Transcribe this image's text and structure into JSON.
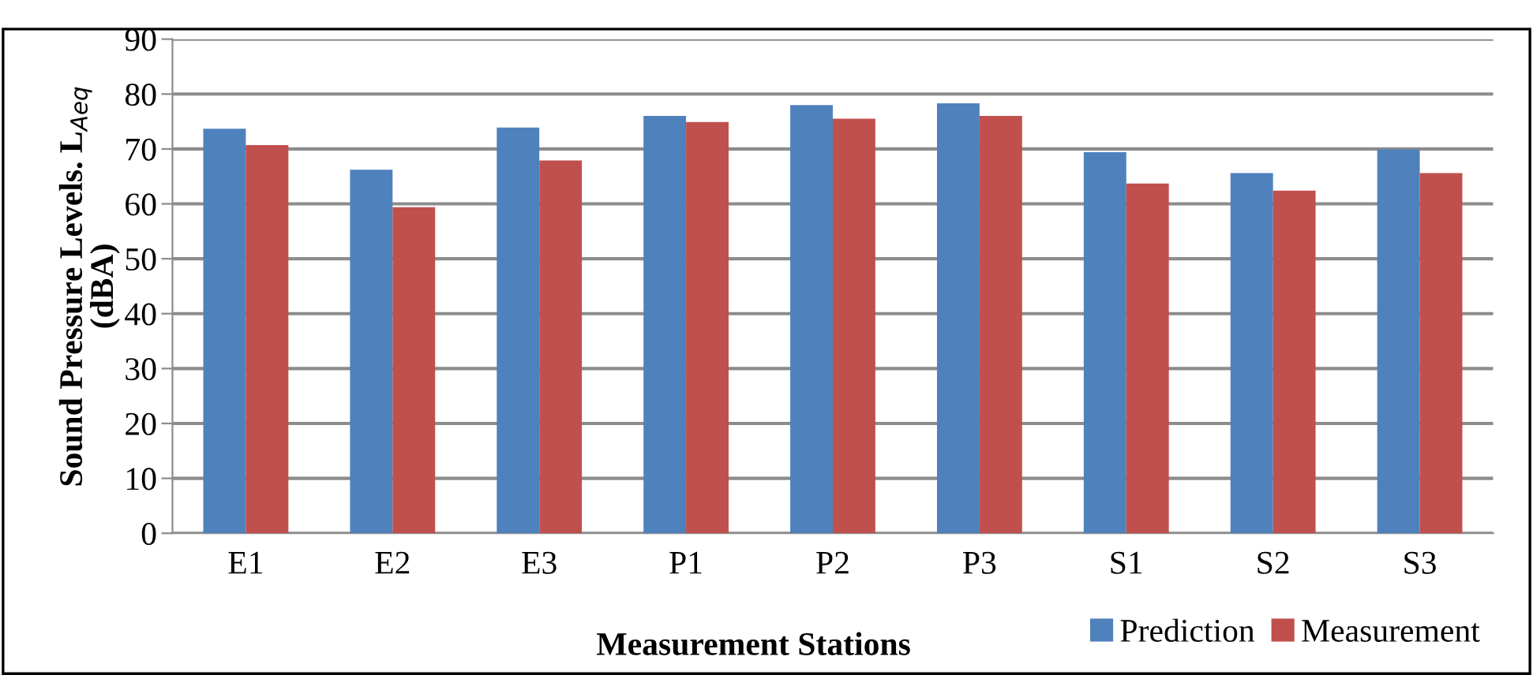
{
  "chart_data": {
    "type": "bar",
    "xlabel": "Measurement Stations",
    "ylabel": "Sound Pressure Levels. L$_{Aeq}$\n(dBA)",
    "categories": [
      "E1",
      "E2",
      "E3",
      "P1",
      "P2",
      "P3",
      "S1",
      "S2",
      "S3"
    ],
    "series": [
      {
        "name": "Prediction",
        "color": "#4f81bd",
        "values": [
          73.7,
          66.2,
          73.9,
          76.0,
          78.0,
          78.3,
          69.4,
          65.6,
          69.9
        ]
      },
      {
        "name": "Measurement",
        "color": "#c0504d",
        "values": [
          70.7,
          59.4,
          67.9,
          74.9,
          75.5,
          76.0,
          63.7,
          62.4,
          65.6
        ]
      }
    ],
    "ylim": [
      0,
      90
    ],
    "yticks": [
      0,
      10,
      20,
      30,
      40,
      50,
      60,
      70,
      80,
      90
    ],
    "grid": "y",
    "legend": "bottom right"
  }
}
